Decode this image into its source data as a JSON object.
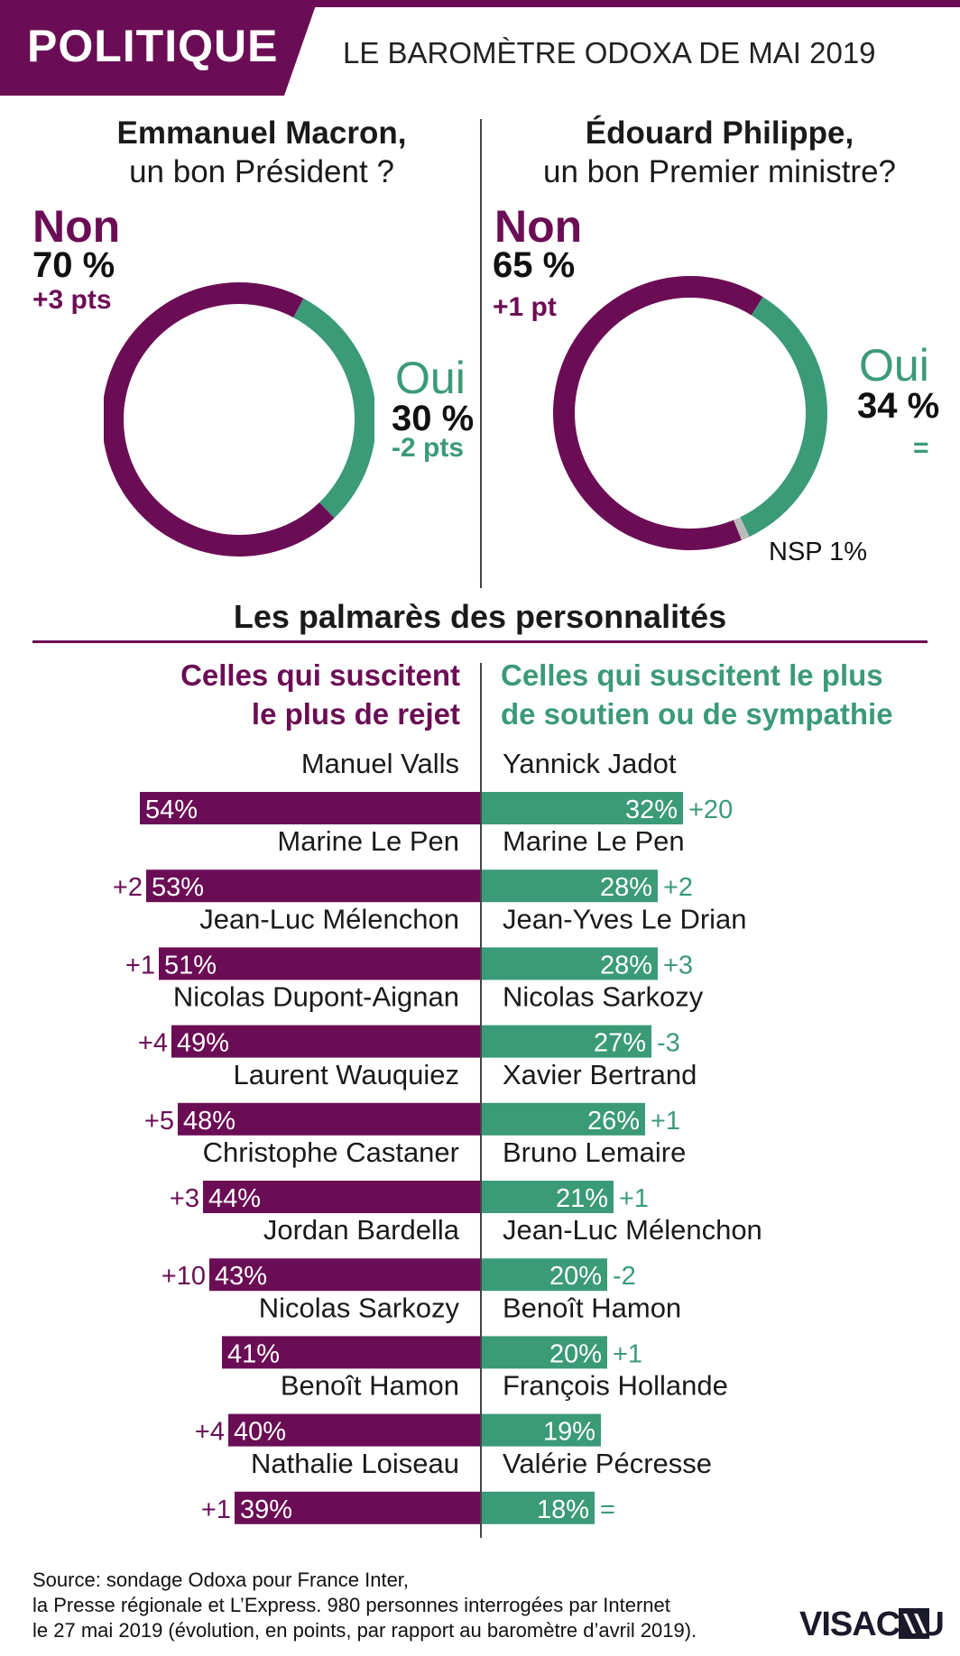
{
  "header": {
    "section": "POLITIQUE",
    "subtitle": "LE BAROMÈTRE ODOXA DE MAI 2019"
  },
  "colors": {
    "reject": "#6b0d55",
    "support": "#3b9a77",
    "nsp": "#bbbbbb"
  },
  "chart_data": [
    {
      "type": "pie",
      "title": "Emmanuel Macron,",
      "subtitle": "un bon Président ?",
      "slices": [
        {
          "label": "Non",
          "value": 70,
          "value_text": "70 %",
          "change": "+3 pts"
        },
        {
          "label": "Oui",
          "value": 30,
          "value_text": "30 %",
          "change": "-2 pts"
        }
      ]
    },
    {
      "type": "pie",
      "title": "Édouard Philippe,",
      "subtitle": "un bon Premier ministre?",
      "slices": [
        {
          "label": "Non",
          "value": 65,
          "value_text": "65 %",
          "change": "+1 pt"
        },
        {
          "label": "Oui",
          "value": 34,
          "value_text": "34 %",
          "change": "="
        },
        {
          "label": "NSP 1%",
          "value": 1
        }
      ]
    },
    {
      "type": "bar",
      "title": "Les palmarès des personnalités",
      "panels": [
        {
          "name": "Celles qui suscitent le plus de rejet",
          "name_lines": [
            "Celles qui suscitent",
            "le plus de rejet"
          ],
          "items": [
            {
              "person": "Manuel Valls",
              "value": 54,
              "value_text": "54%",
              "change": ""
            },
            {
              "person": "Marine Le Pen",
              "value": 53,
              "value_text": "53%",
              "change": "+2"
            },
            {
              "person": "Jean-Luc Mélenchon",
              "value": 51,
              "value_text": "51%",
              "change": "+1"
            },
            {
              "person": "Nicolas Dupont-Aignan",
              "value": 49,
              "value_text": "49%",
              "change": "+4"
            },
            {
              "person": "Laurent Wauquiez",
              "value": 48,
              "value_text": "48%",
              "change": "+5"
            },
            {
              "person": "Christophe Castaner",
              "value": 44,
              "value_text": "44%",
              "change": "+3"
            },
            {
              "person": "Jordan Bardella",
              "value": 43,
              "value_text": "43%",
              "change": "+10"
            },
            {
              "person": "Nicolas Sarkozy",
              "value": 41,
              "value_text": "41%",
              "change": ""
            },
            {
              "person": "Benoît Hamon",
              "value": 40,
              "value_text": "40%",
              "change": "+4"
            },
            {
              "person": "Nathalie Loiseau",
              "value": 39,
              "value_text": "39%",
              "change": "+1"
            }
          ]
        },
        {
          "name": "Celles qui suscitent le plus de soutien ou de sympathie",
          "name_lines": [
            "Celles qui suscitent le plus",
            "de soutien ou de sympathie"
          ],
          "items": [
            {
              "person": "Yannick Jadot",
              "value": 32,
              "value_text": "32%",
              "change": "+20"
            },
            {
              "person": "Marine Le Pen",
              "value": 28,
              "value_text": "28%",
              "change": "+2"
            },
            {
              "person": "Jean-Yves Le Drian",
              "value": 28,
              "value_text": "28%",
              "change": "+3"
            },
            {
              "person": "Nicolas Sarkozy",
              "value": 27,
              "value_text": "27%",
              "change": "-3"
            },
            {
              "person": "Xavier Bertrand",
              "value": 26,
              "value_text": "26%",
              "change": "+1"
            },
            {
              "person": "Bruno Lemaire",
              "value": 21,
              "value_text": "21%",
              "change": "+1"
            },
            {
              "person": "Jean-Luc Mélenchon",
              "value": 20,
              "value_text": "20%",
              "change": "-2"
            },
            {
              "person": "Benoît Hamon",
              "value": 20,
              "value_text": "20%",
              "change": "+1"
            },
            {
              "person": "François Hollande",
              "value": 19,
              "value_text": "19%",
              "change": ""
            },
            {
              "person": "Valérie Pécresse",
              "value": 18,
              "value_text": "18%",
              "change": "="
            }
          ]
        }
      ]
    }
  ],
  "source": {
    "line1": "Source: sondage Odoxa pour France Inter,",
    "line2": "la Presse régionale et L’Express. 980 personnes interrogées par Internet",
    "line3": "le 27 mai 2019 (évolution, en points, par rapport au baromètre d’avril 2019)."
  },
  "logo": {
    "text": "VISACTU"
  }
}
